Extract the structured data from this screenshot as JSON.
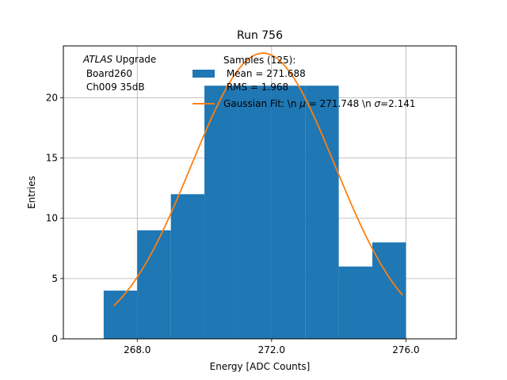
{
  "chart_data": {
    "type": "bar",
    "title": "Run 756",
    "xlabel": "Energy [ADC Counts]",
    "ylabel": "Entries",
    "xlim": [
      265.8,
      277.5
    ],
    "ylim": [
      0,
      24.3
    ],
    "grid": true,
    "xticks": [
      268.0,
      272.0,
      276.0
    ],
    "xtick_labels": [
      "268.0",
      "272.0",
      "276.0"
    ],
    "yticks": [
      0,
      5,
      10,
      15,
      20
    ],
    "ytick_labels": [
      "0",
      "5",
      "10",
      "15",
      "20"
    ],
    "bin_edges": [
      267,
      268,
      269,
      270,
      271,
      272,
      273,
      274,
      275,
      276
    ],
    "counts": [
      4,
      9,
      12,
      21,
      21,
      21,
      21,
      6,
      8
    ],
    "bar_color": "#1f77b4",
    "fit": {
      "name": "Gaussian Fit",
      "mu": 271.748,
      "sigma": 2.141,
      "amplitude": 23.7,
      "x_range": [
        267.3,
        275.9
      ],
      "color": "#ff7f0e"
    },
    "annotation": {
      "experiment": "ATLAS",
      "suffix": " Upgrade",
      "line2": " Board260",
      "line3": " Ch009 35dB"
    },
    "legend": {
      "location": "top-center",
      "histogram_lines": [
        "Samples (125):",
        " Mean = 271.688",
        " RMS = 1.968"
      ],
      "fit_label_parts": [
        "Gaussian Fit: \\n ",
        "μ",
        " = 271.748 \\n ",
        "σ",
        "=2.141"
      ]
    }
  }
}
